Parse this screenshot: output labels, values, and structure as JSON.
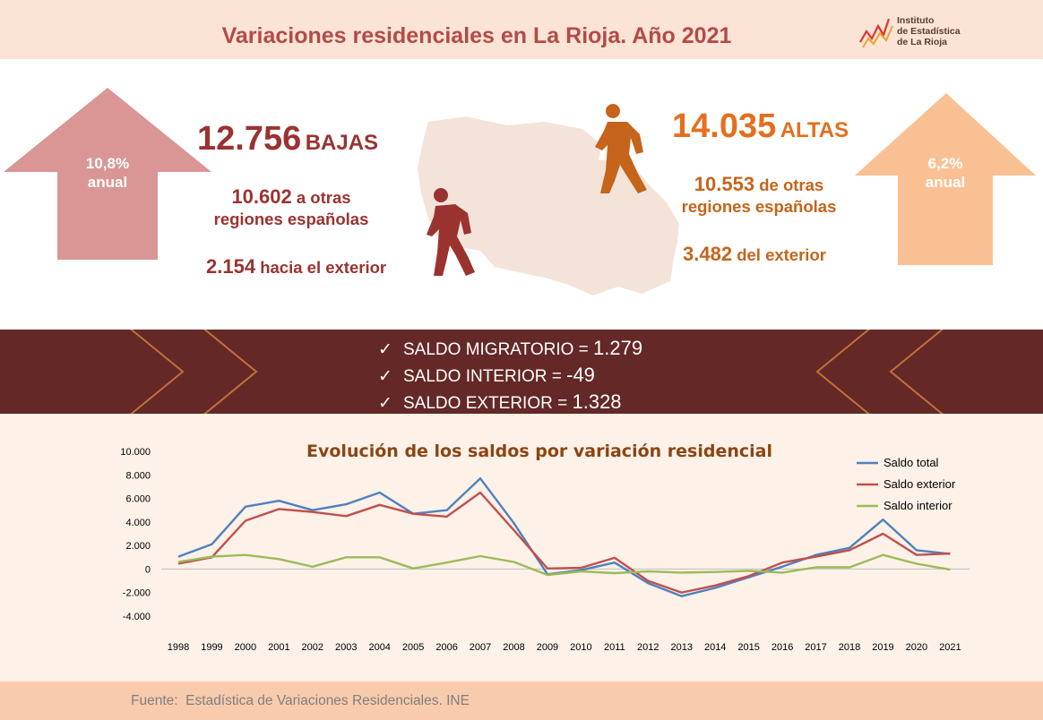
{
  "header": {
    "title": "Variaciones residenciales en La Rioja. Año 2021"
  },
  "logo": {
    "line1": "Instituto",
    "line2": "de Estadística",
    "line3": "de La Rioja"
  },
  "colors": {
    "bajas": "#9a3330",
    "altas": "#c5641a",
    "band": "#642826",
    "arrow_left": "#d99694",
    "arrow_right": "#f9c193"
  },
  "bajas": {
    "arrow_pct": "10,8%",
    "arrow_unit": "anual",
    "total": "12.756",
    "total_label": "BAJAS",
    "regiones_num": "10.602",
    "regiones_text1": "a otras",
    "regiones_text2": "regiones españolas",
    "exterior_num": "2.154",
    "exterior_text": "hacia el exterior"
  },
  "altas": {
    "arrow_pct": "6,2%",
    "arrow_unit": "anual",
    "total": "14.035",
    "total_label": "ALTAS",
    "regiones_num": "10.553",
    "regiones_text1": "de otras",
    "regiones_text2": "regiones españolas",
    "exterior_num": "3.482",
    "exterior_text": "del exterior"
  },
  "saldos": [
    {
      "label": "SALDO MIGRATORIO = ",
      "value": "1.279"
    },
    {
      "label": "SALDO INTERIOR = ",
      "value": "-49"
    },
    {
      "label": "SALDO EXTERIOR = ",
      "value": "1.328"
    }
  ],
  "chart_data": {
    "type": "line",
    "title": "Evolución de los saldos por variación residencial",
    "x": [
      "1998",
      "1999",
      "2000",
      "2001",
      "2002",
      "2003",
      "2004",
      "2005",
      "2006",
      "2007",
      "2008",
      "2009",
      "2010",
      "2011",
      "2012",
      "2013",
      "2014",
      "2015",
      "2016",
      "2017",
      "2018",
      "2019",
      "2020",
      "2021"
    ],
    "y_ticks": [
      "10.000",
      "8.000",
      "6.000",
      "4.000",
      "2.000",
      "0",
      "-2.000",
      "-4.000"
    ],
    "ylim": [
      -4000,
      10000
    ],
    "legend_position": "top-right",
    "series": [
      {
        "name": "Saldo total",
        "color": "#4f81bd",
        "values": [
          1050,
          2100,
          5300,
          5800,
          5000,
          5500,
          6500,
          4700,
          5000,
          7700,
          3900,
          -450,
          -100,
          550,
          -1200,
          -2300,
          -1600,
          -700,
          200,
          1200,
          1800,
          4200,
          1600,
          1279
        ]
      },
      {
        "name": "Saldo exterior",
        "color": "#c0504d",
        "values": [
          450,
          1000,
          4100,
          5100,
          4850,
          4500,
          5450,
          4700,
          4450,
          6500,
          3300,
          50,
          100,
          950,
          -1000,
          -2000,
          -1400,
          -600,
          550,
          1050,
          1600,
          3000,
          1200,
          1328
        ]
      },
      {
        "name": "Saldo interior",
        "color": "#9bbb59",
        "values": [
          600,
          1050,
          1200,
          850,
          200,
          1000,
          1000,
          50,
          550,
          1100,
          600,
          -500,
          -200,
          -350,
          -200,
          -300,
          -250,
          -150,
          -300,
          150,
          150,
          1200,
          450,
          -49
        ]
      }
    ]
  },
  "footer": {
    "source": "Fuente:  Estadística de Variaciones Residenciales. INE"
  }
}
